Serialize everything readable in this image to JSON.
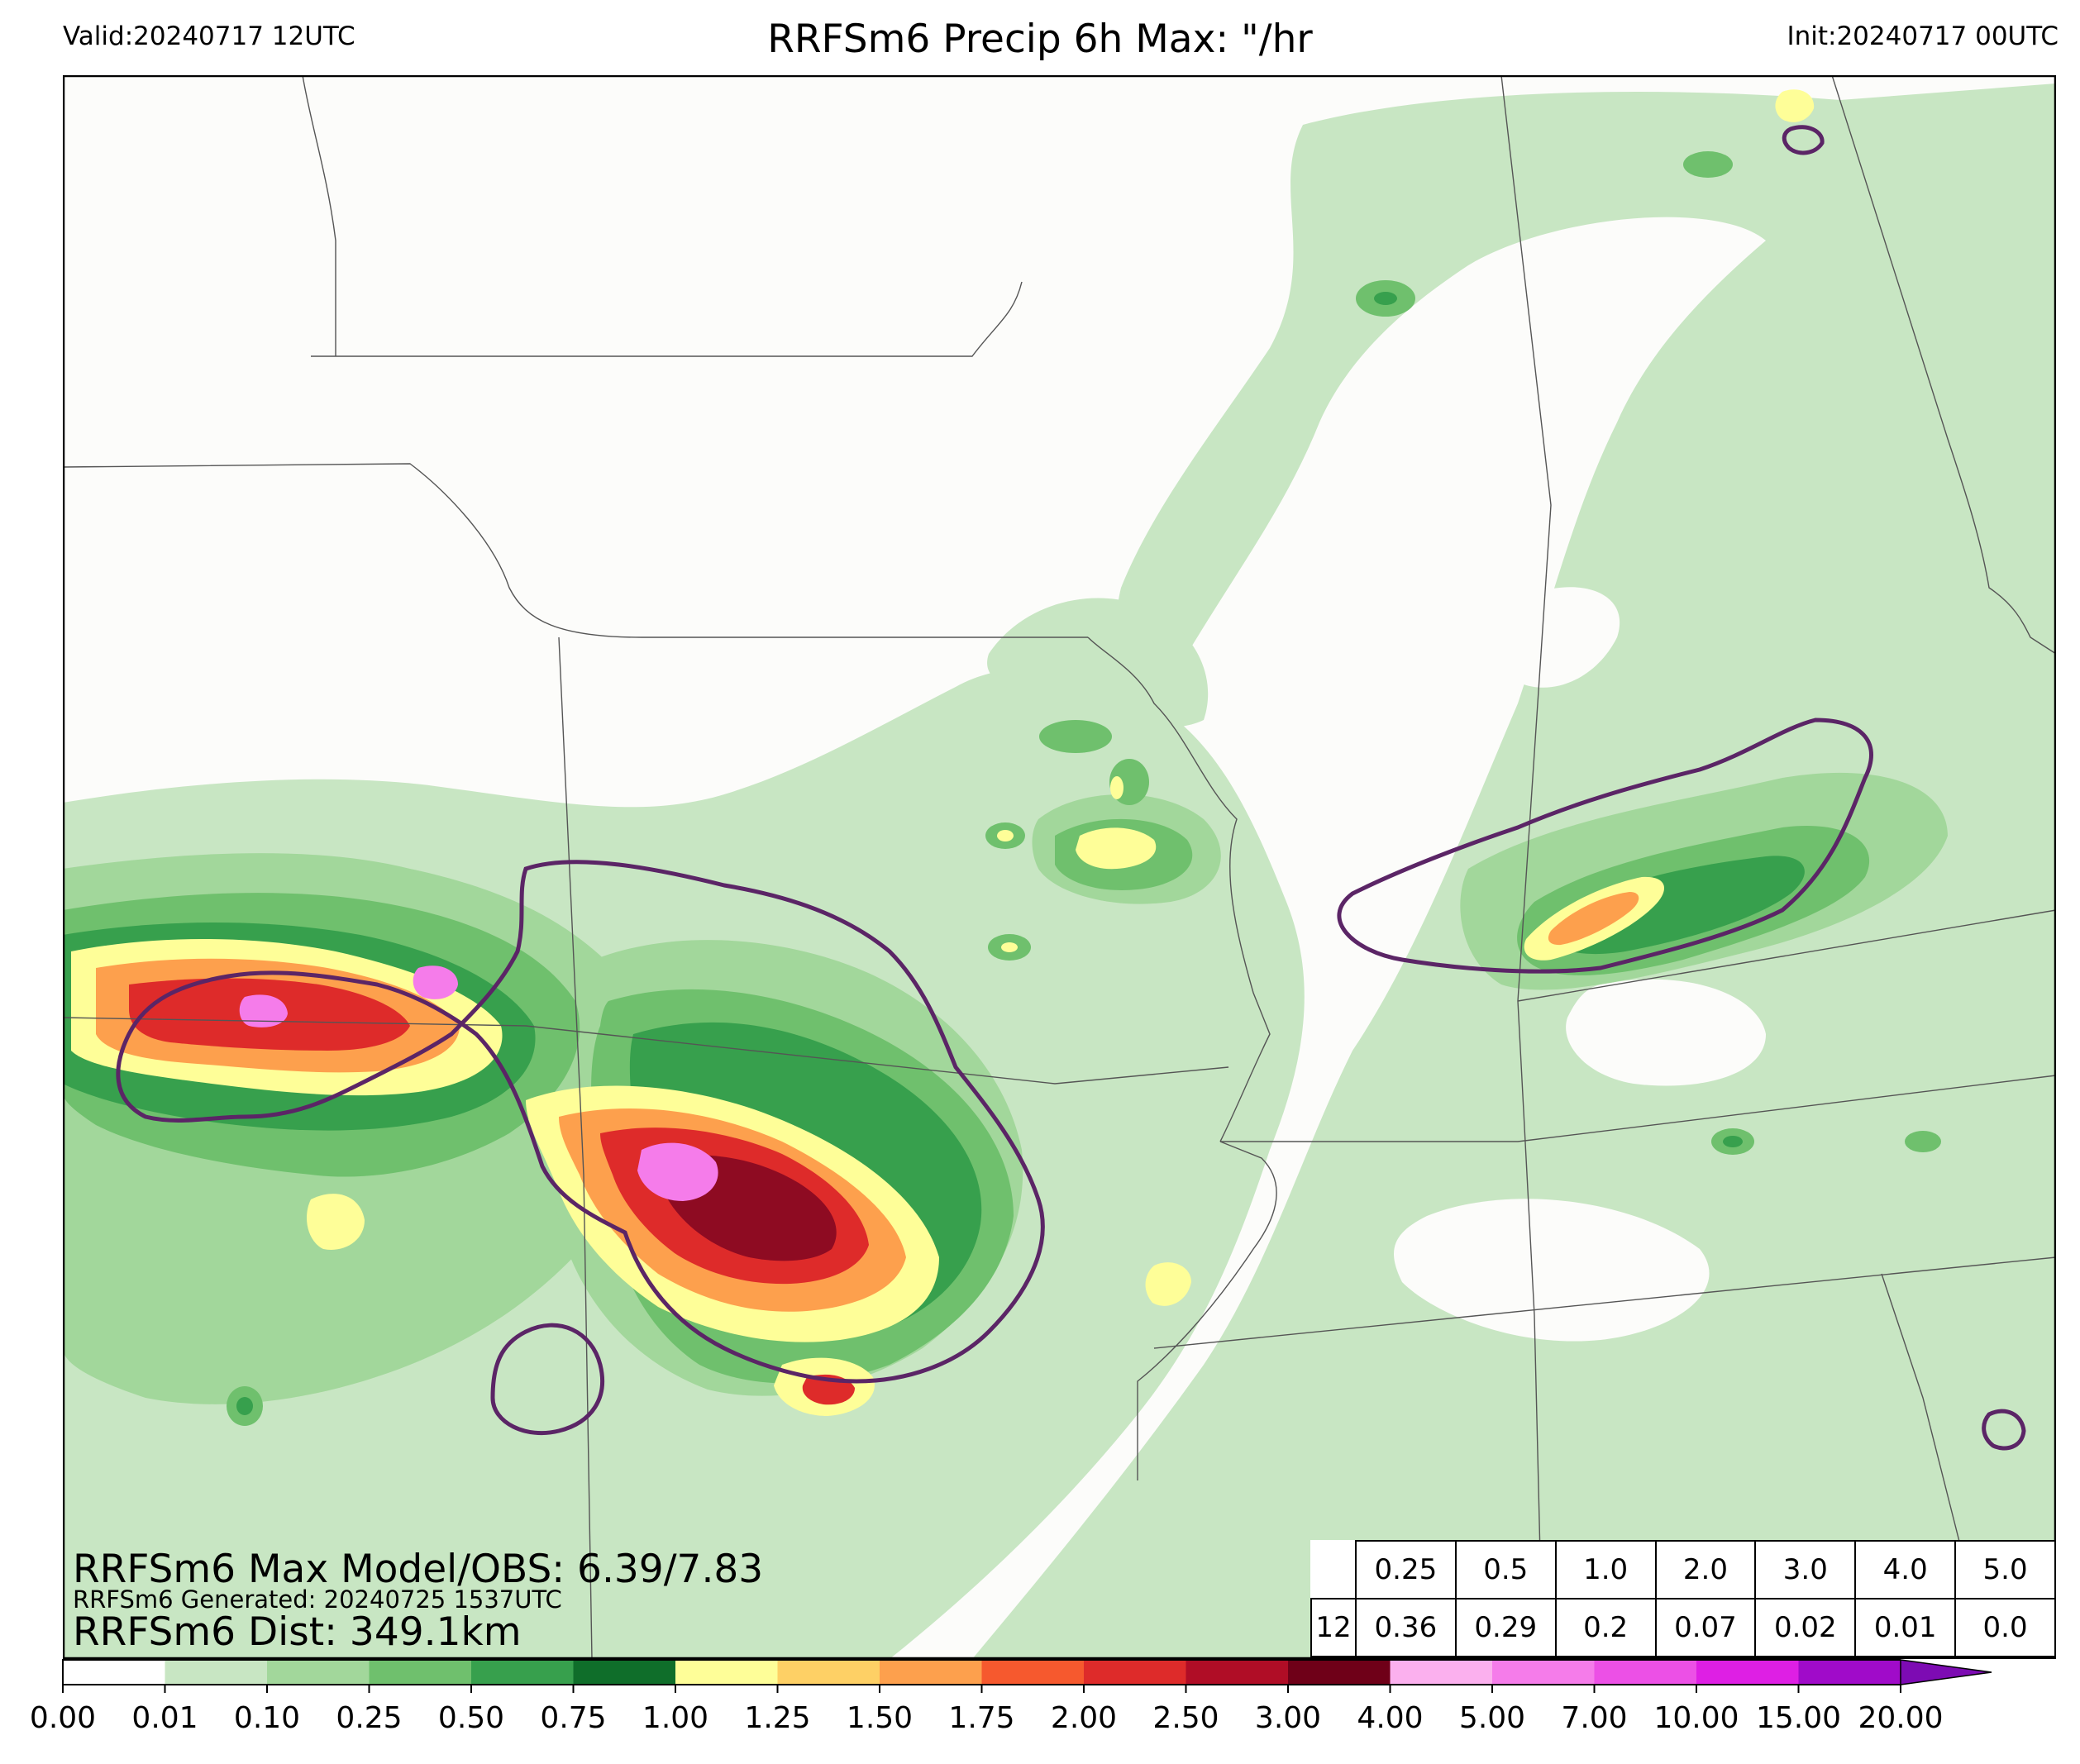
{
  "header": {
    "valid": "Valid:20240717 12UTC",
    "title": "RRFSm6 Precip 6h Max: \"/hr",
    "init": "Init:20240717 00UTC"
  },
  "stats": {
    "max_line": "RRFSm6 Max Model/OBS: 6.39/7.83",
    "generated_line": "RRFSm6 Generated: 20240725 1537UTC",
    "dist_line": "RRFSm6 Dist: 349.1km"
  },
  "score_table": {
    "thresholds": [
      "0.25",
      "0.5",
      "1.0",
      "2.0",
      "3.0",
      "4.0",
      "5.0"
    ],
    "row_label": "12",
    "values": [
      "0.36",
      "0.29",
      "0.2",
      "0.07",
      "0.02",
      "0.01",
      "0.0"
    ]
  },
  "colorbar": {
    "ticks": [
      "0.00",
      "0.01",
      "0.10",
      "0.25",
      "0.50",
      "0.75",
      "1.00",
      "1.25",
      "1.50",
      "1.75",
      "2.00",
      "2.50",
      "3.00",
      "4.00",
      "5.00",
      "7.00",
      "10.00",
      "15.00",
      "20.00"
    ],
    "colors": [
      "#ffffff",
      "#c8e6c3",
      "#a2d79b",
      "#6fc06d",
      "#37a04d",
      "#0f6e2a",
      "#fefe98",
      "#fed065",
      "#fda04d",
      "#f6592e",
      "#de2b2a",
      "#b00d26",
      "#6f0018",
      "#fbb0ee",
      "#f57cea",
      "#ec50e6",
      "#de1fe4",
      "#a00bc9"
    ],
    "extend_color": "#7d0bb3"
  },
  "map": {
    "background_color": "#fcfcfa",
    "light_green": "#c8e6c3",
    "mid_green": "#a2d79b",
    "green": "#6fc06d",
    "dark_green": "#37a04d",
    "deep_green": "#0f6e2a",
    "yellow": "#fefe98",
    "orange": "#fda04d",
    "red": "#de2b2a",
    "dark_red": "#8e0b22",
    "pink": "#f57cea",
    "obs_contour_color": "#5b2566",
    "border_color": "#555555"
  }
}
